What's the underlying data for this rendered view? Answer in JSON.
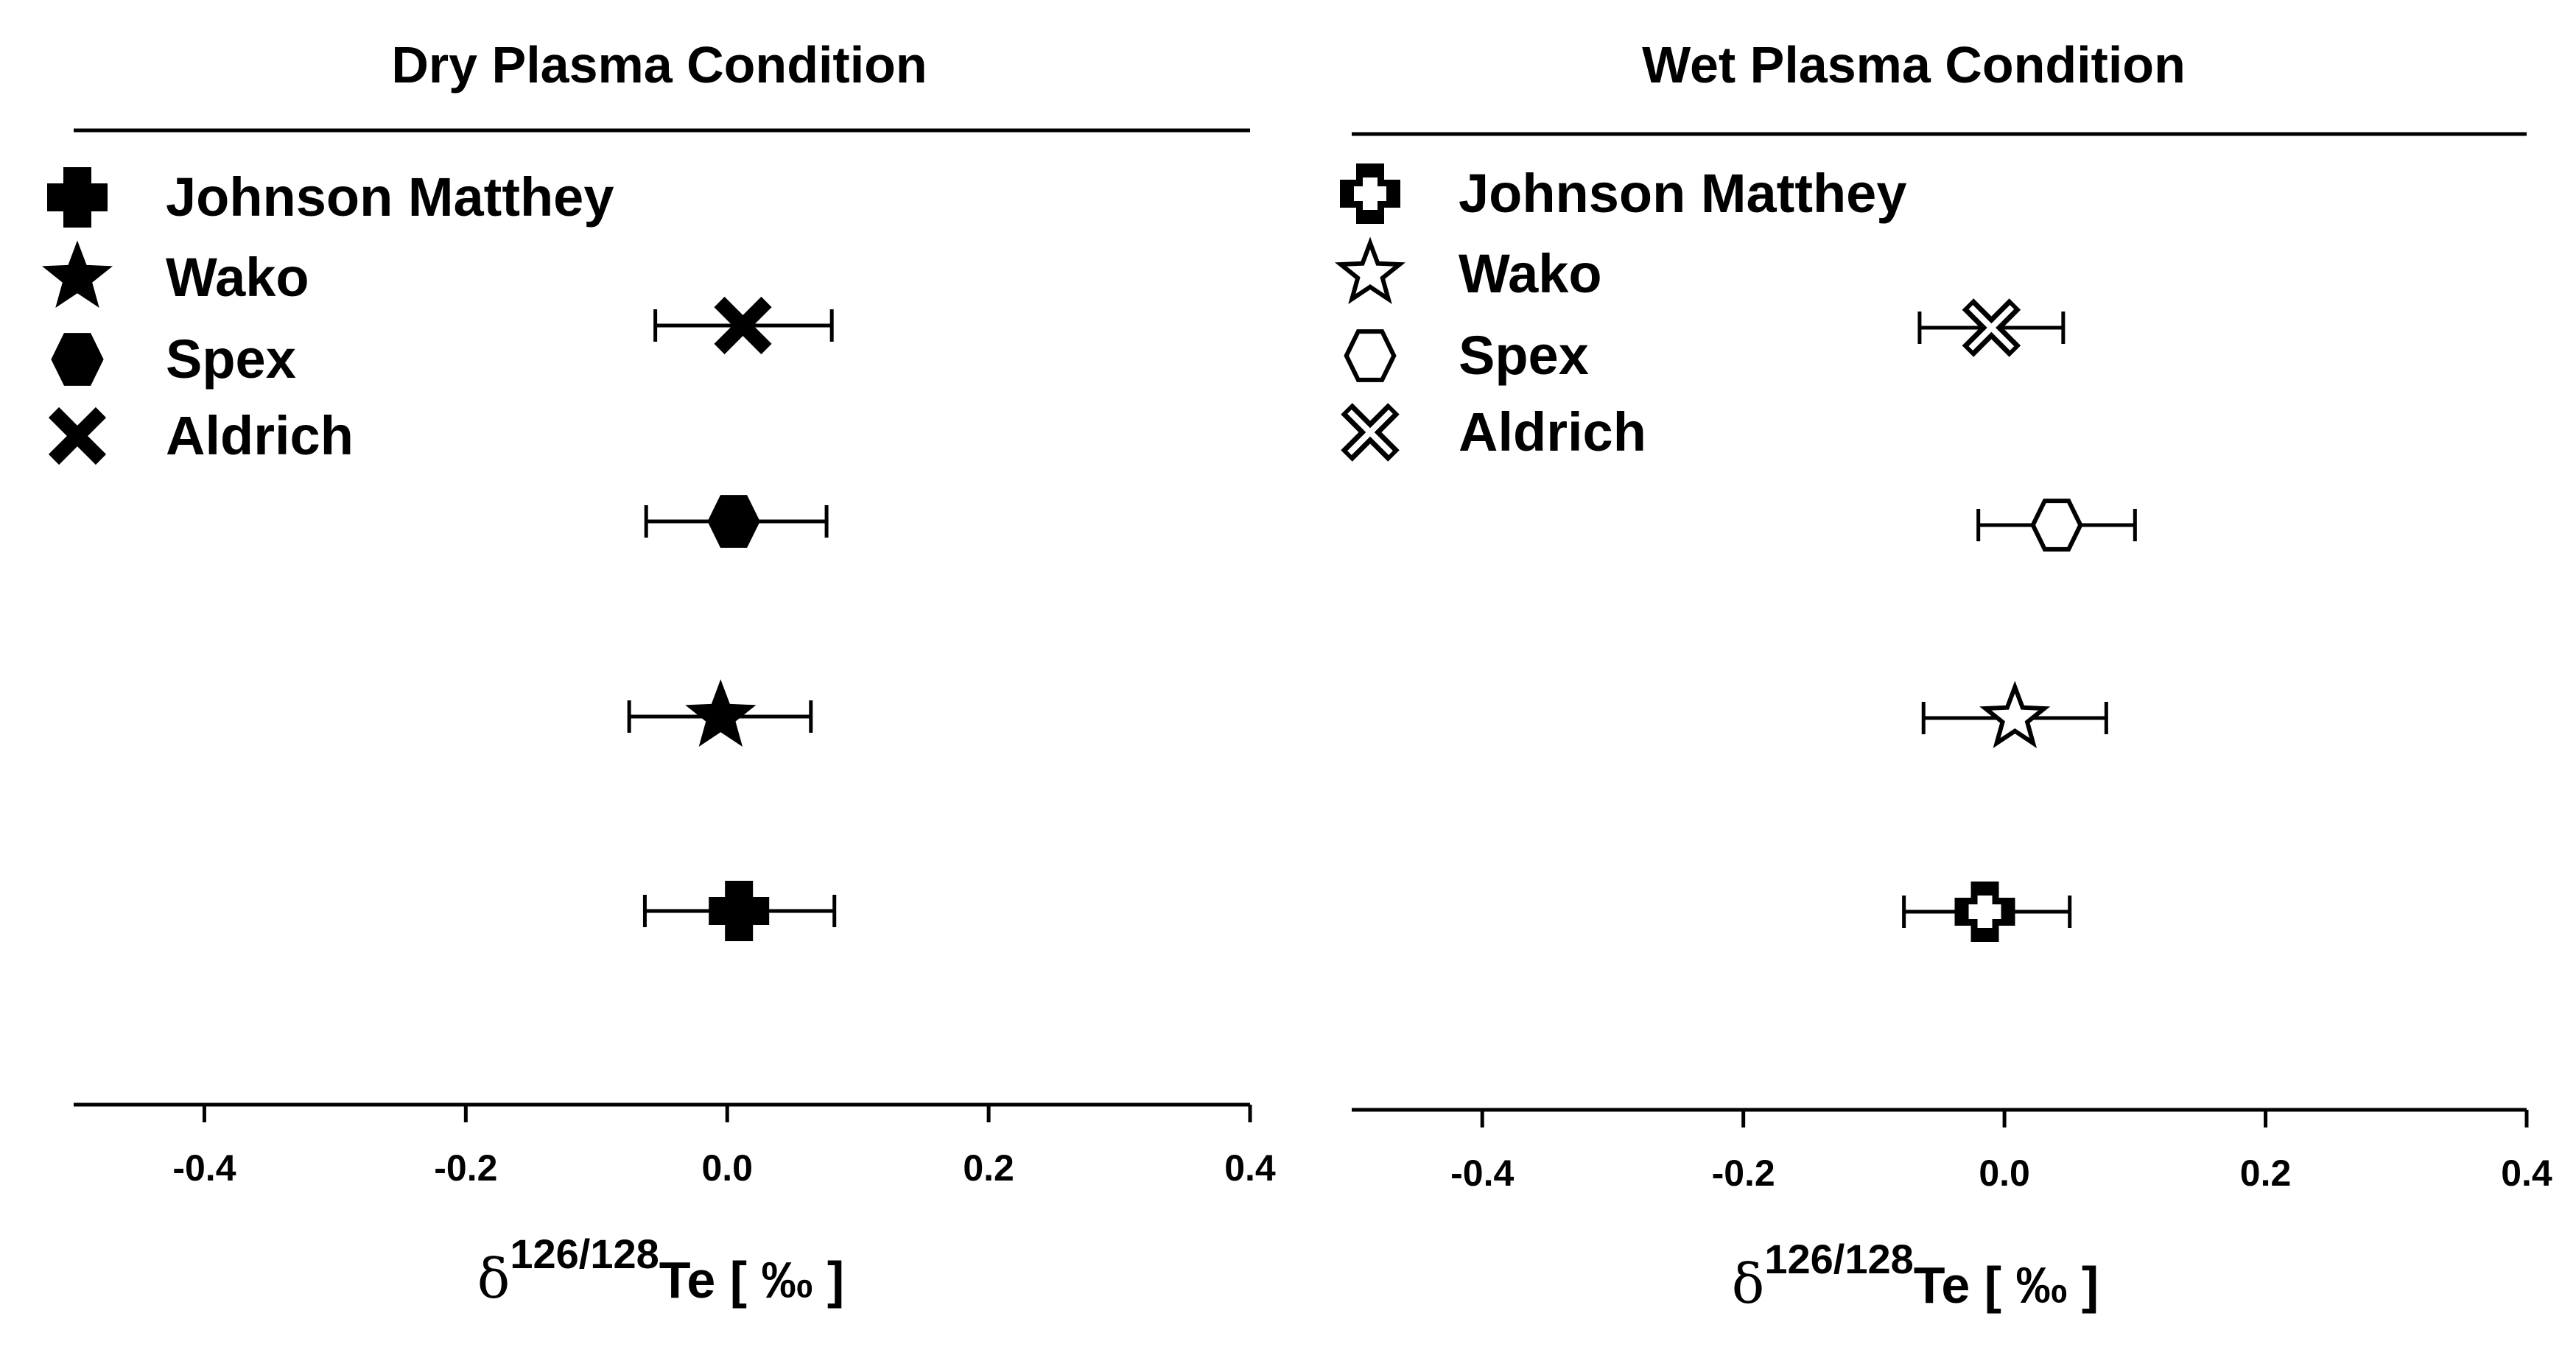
{
  "chart_data": [
    {
      "type": "scatter",
      "title": "Dry Plasma Condition",
      "xlabel": {
        "delta": "δ",
        "sup": "126/128",
        "main": "Te [ ‰ ]"
      },
      "xlim": [
        -0.5,
        0.4
      ],
      "xticks": [
        -0.4,
        -0.2,
        0.0,
        0.2,
        0.4
      ],
      "tick_labels": [
        "-0.4",
        "-0.2",
        "0.0",
        "0.2",
        "0.4"
      ],
      "ylabel": "",
      "filled": true,
      "legend_position": "top-left",
      "series": [
        {
          "name": "Aldrich",
          "marker": "x",
          "x": 0.012,
          "err_low": -0.055,
          "err_high": 0.08
        },
        {
          "name": "Spex",
          "marker": "hexagon",
          "x": 0.005,
          "err_low": -0.062,
          "err_high": 0.076
        },
        {
          "name": "Wako",
          "marker": "star",
          "x": -0.005,
          "err_low": -0.075,
          "err_high": 0.064
        },
        {
          "name": "Johnson Matthey",
          "marker": "cross",
          "x": 0.009,
          "err_low": -0.063,
          "err_high": 0.082
        }
      ],
      "legend": [
        "Johnson Matthey",
        "Wako",
        "Spex",
        "Aldrich"
      ]
    },
    {
      "type": "scatter",
      "title": "Wet Plasma Condition",
      "xlabel": {
        "delta": "δ",
        "sup": "126/128",
        "main": "Te [ ‰ ]"
      },
      "xlim": [
        -0.5,
        0.4
      ],
      "xticks": [
        -0.4,
        -0.2,
        0.0,
        0.2,
        0.4
      ],
      "tick_labels": [
        "-0.4",
        "-0.2",
        "0.0",
        "0.2",
        "0.4"
      ],
      "ylabel": "",
      "filled": false,
      "legend_position": "top-left",
      "series": [
        {
          "name": "Aldrich",
          "marker": "x",
          "x": -0.01,
          "err_low": -0.065,
          "err_high": 0.045
        },
        {
          "name": "Spex",
          "marker": "hexagon",
          "x": 0.04,
          "err_low": -0.02,
          "err_high": 0.1
        },
        {
          "name": "Wako",
          "marker": "star",
          "x": 0.008,
          "err_low": -0.062,
          "err_high": 0.078
        },
        {
          "name": "Johnson Matthey",
          "marker": "cross",
          "x": -0.015,
          "err_low": -0.077,
          "err_high": 0.05
        }
      ],
      "legend": [
        "Johnson Matthey",
        "Wako",
        "Spex",
        "Aldrich"
      ]
    }
  ]
}
